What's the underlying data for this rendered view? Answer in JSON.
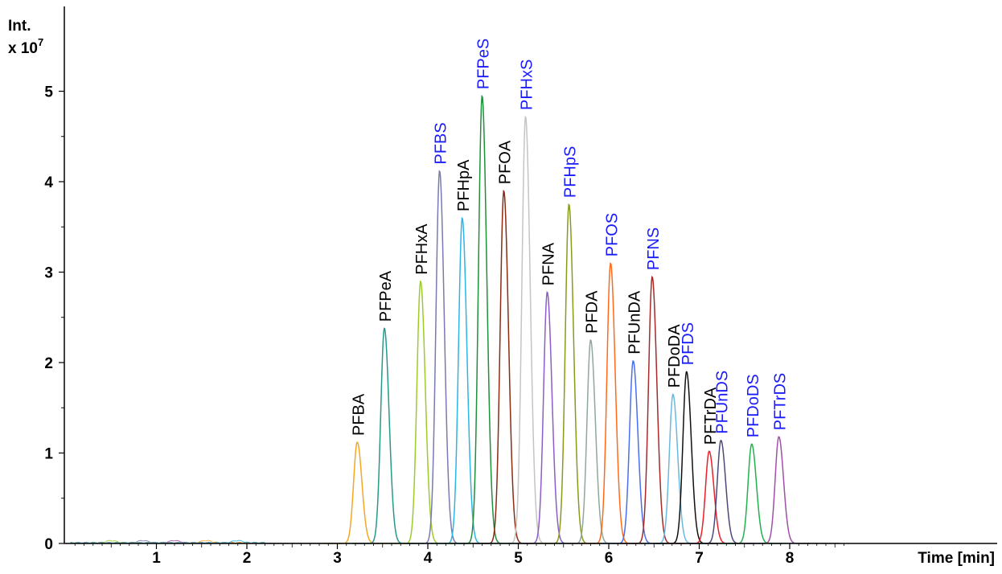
{
  "chart_data": {
    "type": "line",
    "title": "",
    "ylabel_line1": "Int.",
    "ylabel_line2": "x 10",
    "ylabel_exponent": "7",
    "xlabel": "Time [min]",
    "xlim": [
      0,
      8.6
    ],
    "ylim": [
      0,
      5.4
    ],
    "xticks": [
      "1",
      "2",
      "3",
      "4",
      "5",
      "6",
      "7",
      "8"
    ],
    "yticks": [
      "0",
      "1",
      "2",
      "3",
      "4",
      "5"
    ],
    "grid": false,
    "legend": "none",
    "label_colors": {
      "acid": "#000000",
      "sulfonate": "#1a1aff"
    },
    "series": [
      {
        "name": "PFBA",
        "rt": 3.22,
        "height": 1.12,
        "color": "#f5a623",
        "kind": "acid"
      },
      {
        "name": "PFPeA",
        "rt": 3.52,
        "height": 2.38,
        "color": "#26998c",
        "kind": "acid"
      },
      {
        "name": "PFHxA",
        "rt": 3.92,
        "height": 2.9,
        "color": "#9ccc2a",
        "kind": "acid"
      },
      {
        "name": "PFBS",
        "rt": 4.13,
        "height": 4.12,
        "color": "#7a7ab0",
        "kind": "sulfonate"
      },
      {
        "name": "PFHpA",
        "rt": 4.38,
        "height": 3.6,
        "color": "#2bb5e8",
        "kind": "acid"
      },
      {
        "name": "PFPeS",
        "rt": 4.6,
        "height": 4.95,
        "color": "#1e8f3a",
        "kind": "sulfonate"
      },
      {
        "name": "PFOA",
        "rt": 4.84,
        "height": 3.9,
        "color": "#8b2c14",
        "kind": "acid"
      },
      {
        "name": "PFHxS",
        "rt": 5.08,
        "height": 4.72,
        "color": "#c4c4c4",
        "kind": "sulfonate"
      },
      {
        "name": "PFNA",
        "rt": 5.32,
        "height": 2.78,
        "color": "#8e5cc8",
        "kind": "acid"
      },
      {
        "name": "PFHpS",
        "rt": 5.56,
        "height": 3.75,
        "color": "#8a9a1a",
        "kind": "sulfonate"
      },
      {
        "name": "PFDA",
        "rt": 5.8,
        "height": 2.25,
        "color": "#8fa89a",
        "kind": "acid"
      },
      {
        "name": "PFOS",
        "rt": 6.02,
        "height": 3.1,
        "color": "#ff6a1a",
        "kind": "sulfonate"
      },
      {
        "name": "PFUnDA",
        "rt": 6.27,
        "height": 2.02,
        "color": "#4a6ef0",
        "kind": "acid"
      },
      {
        "name": "PFNS",
        "rt": 6.48,
        "height": 2.95,
        "color": "#a52a2a",
        "kind": "sulfonate"
      },
      {
        "name": "PFDoDA",
        "rt": 6.71,
        "height": 1.65,
        "color": "#6ab8e0",
        "kind": "acid"
      },
      {
        "name": "PFDS",
        "rt": 6.86,
        "height": 1.9,
        "color": "#111111",
        "kind": "sulfonate"
      },
      {
        "name": "PFTrDA",
        "rt": 7.11,
        "height": 1.02,
        "color": "#e8202a",
        "kind": "acid"
      },
      {
        "name": "PFUnDS",
        "rt": 7.24,
        "height": 1.14,
        "color": "#4a4a7a",
        "kind": "sulfonate"
      },
      {
        "name": "PFDoDS",
        "rt": 7.58,
        "height": 1.1,
        "color": "#22b14c",
        "kind": "sulfonate"
      },
      {
        "name": "PFTrDS",
        "rt": 7.88,
        "height": 1.18,
        "color": "#a050a8",
        "kind": "sulfonate"
      }
    ]
  }
}
